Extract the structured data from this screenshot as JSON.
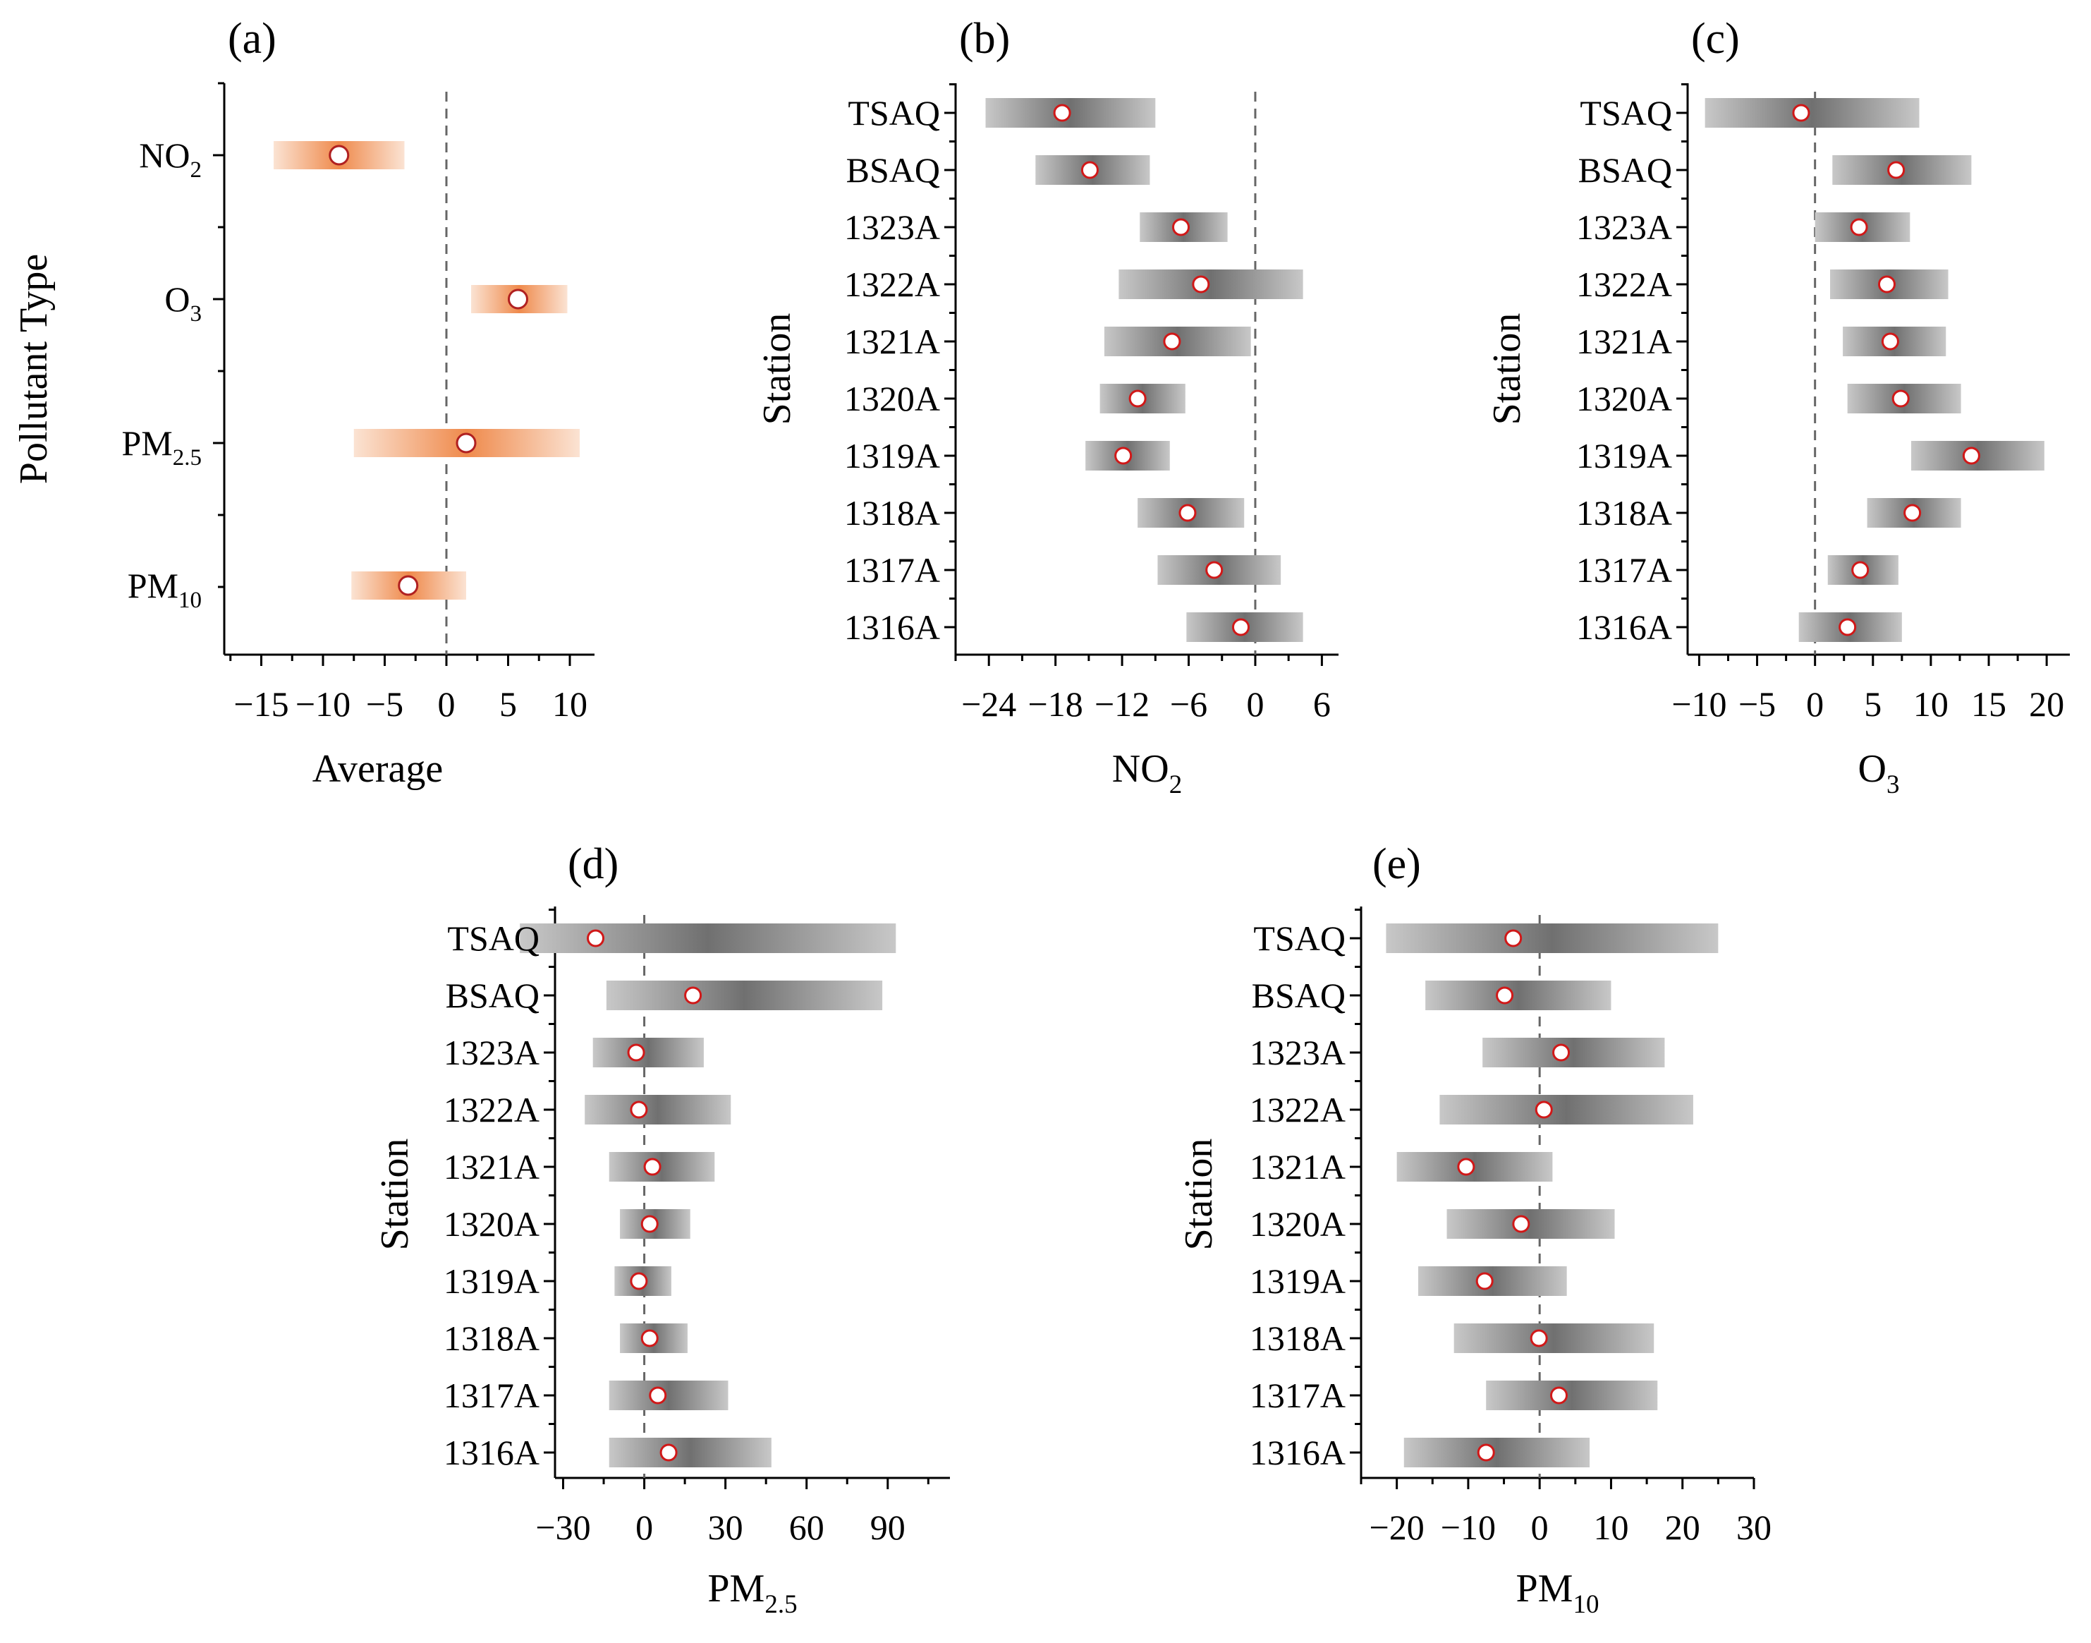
{
  "chart_data": [
    {
      "panel": "(a)",
      "type": "range-bar",
      "title": "",
      "xlabel": "Average",
      "ylabel": "Pollutant Type",
      "xlim": [
        -18,
        12
      ],
      "xticks": [
        -15,
        -10,
        -5,
        0,
        5,
        10
      ],
      "xtick_labels": [
        "−15",
        "−10",
        "−5",
        "0",
        "5",
        "10"
      ],
      "reference_line": 0,
      "categories": [
        {
          "base": "NO",
          "sub": "2"
        },
        {
          "base": "O",
          "sub": "3"
        },
        {
          "base": "PM",
          "sub": "2.5"
        },
        {
          "base": "PM",
          "sub": "10"
        }
      ],
      "bars": [
        {
          "low": -14.0,
          "high": -3.4,
          "mean": -8.7
        },
        {
          "low": 2.0,
          "high": 9.8,
          "mean": 5.8
        },
        {
          "low": -7.5,
          "high": 10.8,
          "mean": 1.6
        },
        {
          "low": -7.7,
          "high": 1.6,
          "mean": -3.1
        }
      ]
    },
    {
      "panel": "(b)",
      "type": "range-bar",
      "xlabel": {
        "base": "NO",
        "sub": "2"
      },
      "ylabel": "Station",
      "xlim": [
        -27,
        7.5
      ],
      "xticks": [
        -24,
        -18,
        -12,
        -6,
        0,
        6
      ],
      "xtick_labels": [
        "−24",
        "−18",
        "−12",
        "−6",
        "0",
        "6"
      ],
      "reference_line": 0,
      "categories": [
        "TSAQ",
        "BSAQ",
        "1323A",
        "1322A",
        "1321A",
        "1320A",
        "1319A",
        "1318A",
        "1317A",
        "1316A"
      ],
      "bars": [
        {
          "low": -24.3,
          "high": -9.0,
          "mean": -17.4
        },
        {
          "low": -19.8,
          "high": -9.5,
          "mean": -14.9
        },
        {
          "low": -10.4,
          "high": -2.5,
          "mean": -6.7
        },
        {
          "low": -12.3,
          "high": 4.3,
          "mean": -4.9
        },
        {
          "low": -13.6,
          "high": -0.4,
          "mean": -7.5
        },
        {
          "low": -14.0,
          "high": -6.3,
          "mean": -10.6
        },
        {
          "low": -15.3,
          "high": -7.7,
          "mean": -11.9
        },
        {
          "low": -10.6,
          "high": -1.0,
          "mean": -6.1
        },
        {
          "low": -8.8,
          "high": 2.3,
          "mean": -3.7
        },
        {
          "low": -6.2,
          "high": 4.3,
          "mean": -1.3
        }
      ]
    },
    {
      "panel": "(c)",
      "type": "range-bar",
      "xlabel": {
        "base": "O",
        "sub": "3"
      },
      "ylabel": "Station",
      "xlim": [
        -11,
        22
      ],
      "xticks": [
        -10,
        -5,
        0,
        5,
        10,
        15,
        20
      ],
      "xtick_labels": [
        "−10",
        "−5",
        "0",
        "5",
        "10",
        "15",
        "20"
      ],
      "reference_line": 0,
      "categories": [
        "TSAQ",
        "BSAQ",
        "1323A",
        "1322A",
        "1321A",
        "1320A",
        "1319A",
        "1318A",
        "1317A",
        "1316A"
      ],
      "bars": [
        {
          "low": -9.5,
          "high": 9.0,
          "mean": -1.2
        },
        {
          "low": 1.5,
          "high": 13.5,
          "mean": 7.0
        },
        {
          "low": 0.0,
          "high": 8.2,
          "mean": 3.8
        },
        {
          "low": 1.3,
          "high": 11.5,
          "mean": 6.2
        },
        {
          "low": 2.4,
          "high": 11.3,
          "mean": 6.5
        },
        {
          "low": 2.8,
          "high": 12.6,
          "mean": 7.4
        },
        {
          "low": 8.3,
          "high": 19.8,
          "mean": 13.5
        },
        {
          "low": 4.5,
          "high": 12.6,
          "mean": 8.4
        },
        {
          "low": 1.1,
          "high": 7.2,
          "mean": 3.9
        },
        {
          "low": -1.4,
          "high": 7.5,
          "mean": 2.8
        }
      ]
    },
    {
      "panel": "(d)",
      "type": "range-bar",
      "xlabel": {
        "base": "PM",
        "sub": "2.5"
      },
      "ylabel": "Station",
      "xlim": [
        -33,
        113
      ],
      "xticks": [
        -30,
        0,
        30,
        60,
        90
      ],
      "xtick_labels": [
        "−30",
        "0",
        "30",
        "60",
        "90"
      ],
      "reference_line": 0,
      "categories": [
        "TSAQ",
        "BSAQ",
        "1323A",
        "1322A",
        "1321A",
        "1320A",
        "1319A",
        "1318A",
        "1317A",
        "1316A"
      ],
      "bars": [
        {
          "low": -46.0,
          "high": 93.0,
          "mean": -18.0
        },
        {
          "low": -14.0,
          "high": 88.0,
          "mean": 18.0
        },
        {
          "low": -19.0,
          "high": 22.0,
          "mean": -3.0
        },
        {
          "low": -22.0,
          "high": 32.0,
          "mean": -2.0
        },
        {
          "low": -13.0,
          "high": 26.0,
          "mean": 3.0
        },
        {
          "low": -9.0,
          "high": 17.0,
          "mean": 2.0
        },
        {
          "low": -11.0,
          "high": 10.0,
          "mean": -2.0
        },
        {
          "low": -9.0,
          "high": 16.0,
          "mean": 2.0
        },
        {
          "low": -13.0,
          "high": 31.0,
          "mean": 5.0
        },
        {
          "low": -13.0,
          "high": 47.0,
          "mean": 9.0
        }
      ]
    },
    {
      "panel": "(e)",
      "type": "range-bar",
      "xlabel": {
        "base": "PM",
        "sub": "10"
      },
      "ylabel": "Station",
      "xlim": [
        -25,
        30
      ],
      "xticks": [
        -20,
        -10,
        0,
        10,
        20,
        30
      ],
      "xtick_labels": [
        "−20",
        "−10",
        "0",
        "10",
        "20",
        "30"
      ],
      "reference_line": 0,
      "categories": [
        "TSAQ",
        "BSAQ",
        "1323A",
        "1322A",
        "1321A",
        "1320A",
        "1319A",
        "1318A",
        "1317A",
        "1316A"
      ],
      "bars": [
        {
          "low": -21.5,
          "high": 25.0,
          "mean": -3.7
        },
        {
          "low": -16.0,
          "high": 10.0,
          "mean": -4.9
        },
        {
          "low": -8.0,
          "high": 17.5,
          "mean": 3.0
        },
        {
          "low": -14.0,
          "high": 21.5,
          "mean": 0.6
        },
        {
          "low": -20.0,
          "high": 1.8,
          "mean": -10.3
        },
        {
          "low": -13.0,
          "high": 10.5,
          "mean": -2.6
        },
        {
          "low": -17.0,
          "high": 3.8,
          "mean": -7.7
        },
        {
          "low": -12.0,
          "high": 16.0,
          "mean": -0.1
        },
        {
          "low": -7.5,
          "high": 16.5,
          "mean": 2.7
        },
        {
          "low": -19.0,
          "high": 7.0,
          "mean": -7.5
        }
      ]
    }
  ]
}
